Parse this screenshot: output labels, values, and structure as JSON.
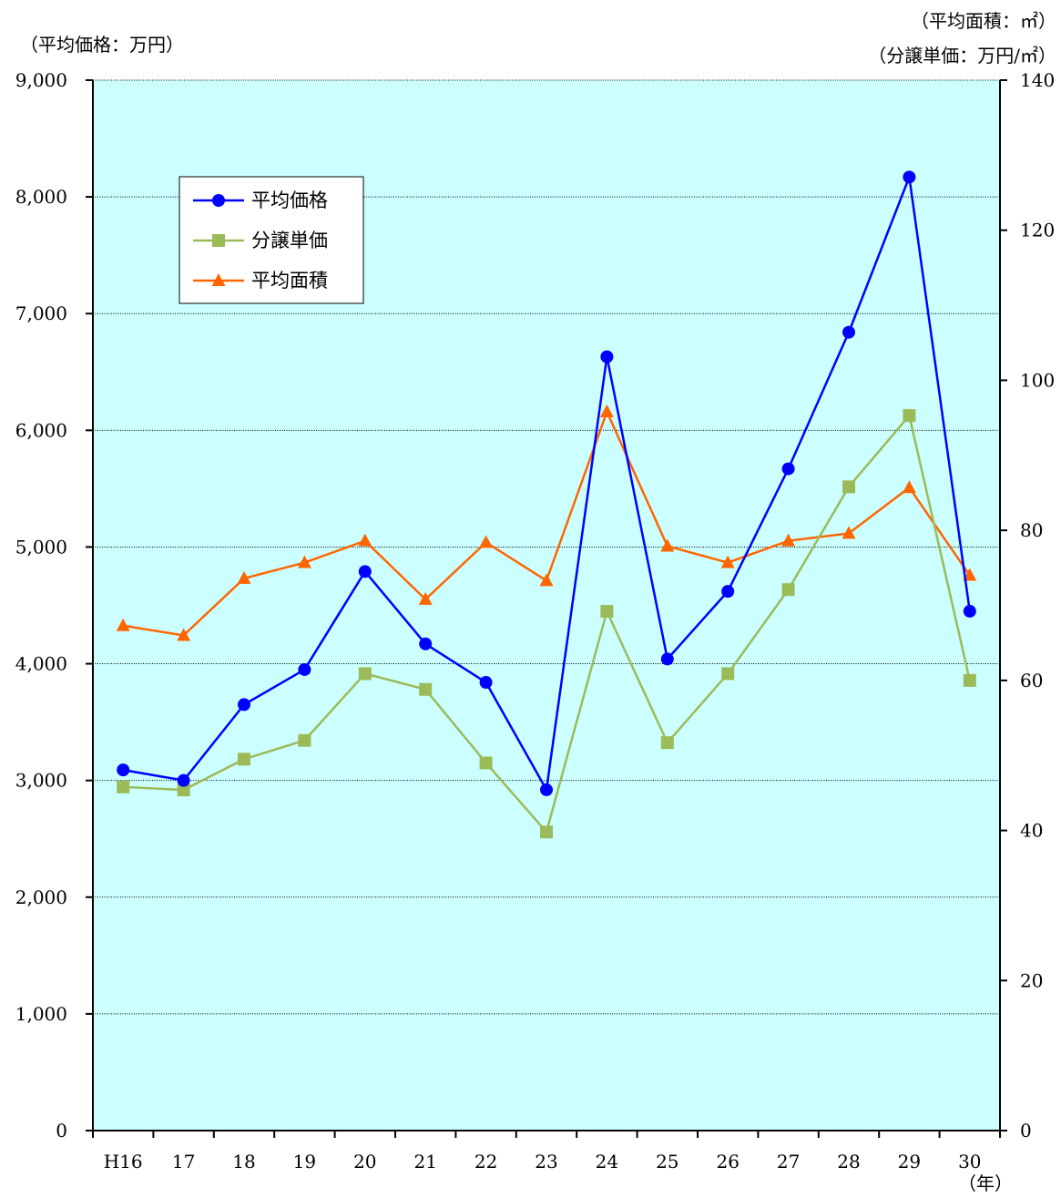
{
  "chart_data": {
    "type": "line",
    "title": "",
    "xlabel": "",
    "left_axis_unit": "（平均価格：万円）",
    "right_axis_unit_1": "（平均面積：㎡）",
    "right_axis_unit_2": "（分譲単価：万円/㎡）",
    "x_unit": "（年）",
    "categories": [
      "H16",
      "17",
      "18",
      "19",
      "20",
      "21",
      "22",
      "23",
      "24",
      "25",
      "26",
      "27",
      "28",
      "29",
      "30"
    ],
    "left_axis": {
      "min": 0,
      "max": 9000,
      "step": 1000,
      "ticks": [
        "0",
        "1,000",
        "2,000",
        "3,000",
        "4,000",
        "5,000",
        "6,000",
        "7,000",
        "8,000",
        "9,000"
      ]
    },
    "right_axis": {
      "min": 0,
      "max": 140,
      "step": 20,
      "ticks": [
        "0",
        "20",
        "40",
        "60",
        "80",
        "100",
        "120",
        "140"
      ]
    },
    "grid": true,
    "legend_position": "upper-left",
    "series": [
      {
        "name": "平均価格",
        "axis": "left",
        "color": "#0000ff",
        "marker": "circle",
        "values": [
          3090,
          3000,
          3650,
          3950,
          4790,
          4170,
          3840,
          2920,
          6630,
          4040,
          4620,
          5670,
          6840,
          8170,
          4450
        ]
      },
      {
        "name": "分譲単価",
        "axis": "right",
        "color": "#9bbb59",
        "marker": "square",
        "values": [
          45.8,
          45.4,
          49.5,
          52.0,
          60.9,
          58.8,
          49.0,
          39.8,
          69.2,
          51.7,
          60.9,
          72.1,
          85.8,
          95.3,
          60.0
        ]
      },
      {
        "name": "平均面積",
        "axis": "right",
        "color": "#ff6600",
        "marker": "triangle",
        "values": [
          67.3,
          66.0,
          73.6,
          75.7,
          78.6,
          70.8,
          78.4,
          73.3,
          95.8,
          77.9,
          75.7,
          78.6,
          79.6,
          85.7,
          74.0
        ]
      }
    ]
  }
}
